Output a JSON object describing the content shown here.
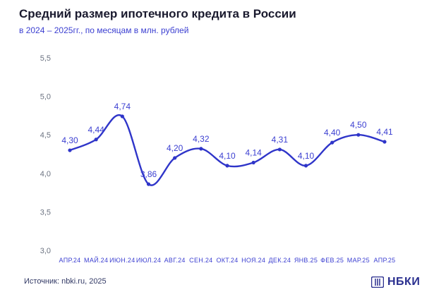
{
  "header": {
    "title": "Средний размер ипотечного кредита в России",
    "subtitle": "в 2024 – 2025гг., по месяцам в млн. рублей"
  },
  "footer": {
    "source": "Источник: nbki.ru, 2025",
    "brand": "НБКИ",
    "brand_icon": "nbki-logo-icon"
  },
  "colors": {
    "line": "#2f35c9",
    "text_accent": "#3b3fd1",
    "axis_text": "#6b7280",
    "title": "#1a1a2e"
  },
  "chart_data": {
    "type": "line",
    "title": "Средний размер ипотечного кредита в России",
    "subtitle": "в 2024 – 2025гг., по месяцам в млн. рублей",
    "xlabel": "",
    "ylabel": "",
    "categories": [
      "АПР.24",
      "МАЙ.24",
      "ИЮН.24",
      "ИЮЛ.24",
      "АВГ.24",
      "СЕН.24",
      "ОКТ.24",
      "НОЯ.24",
      "ДЕК.24",
      "ЯНВ.25",
      "ФЕВ.25",
      "МАР.25",
      "АПР.25"
    ],
    "series": [
      {
        "values": [
          4.3,
          4.44,
          4.74,
          3.86,
          4.2,
          4.32,
          4.1,
          4.14,
          4.31,
          4.1,
          4.4,
          4.5,
          4.41
        ],
        "labels": [
          "4,30",
          "4,44",
          "4,74",
          "3,86",
          "4,20",
          "4,32",
          "4,10",
          "4,14",
          "4,31",
          "4,10",
          "4,40",
          "4,50",
          "4,41"
        ]
      }
    ],
    "ylim": [
      3.0,
      5.5
    ],
    "yticks": [
      3.0,
      3.5,
      4.0,
      4.5,
      5.0,
      5.5
    ],
    "ytick_labels": [
      "3,0",
      "3,5",
      "4,0",
      "4,5",
      "5,0",
      "5,5"
    ],
    "grid": false,
    "legend": "none"
  }
}
